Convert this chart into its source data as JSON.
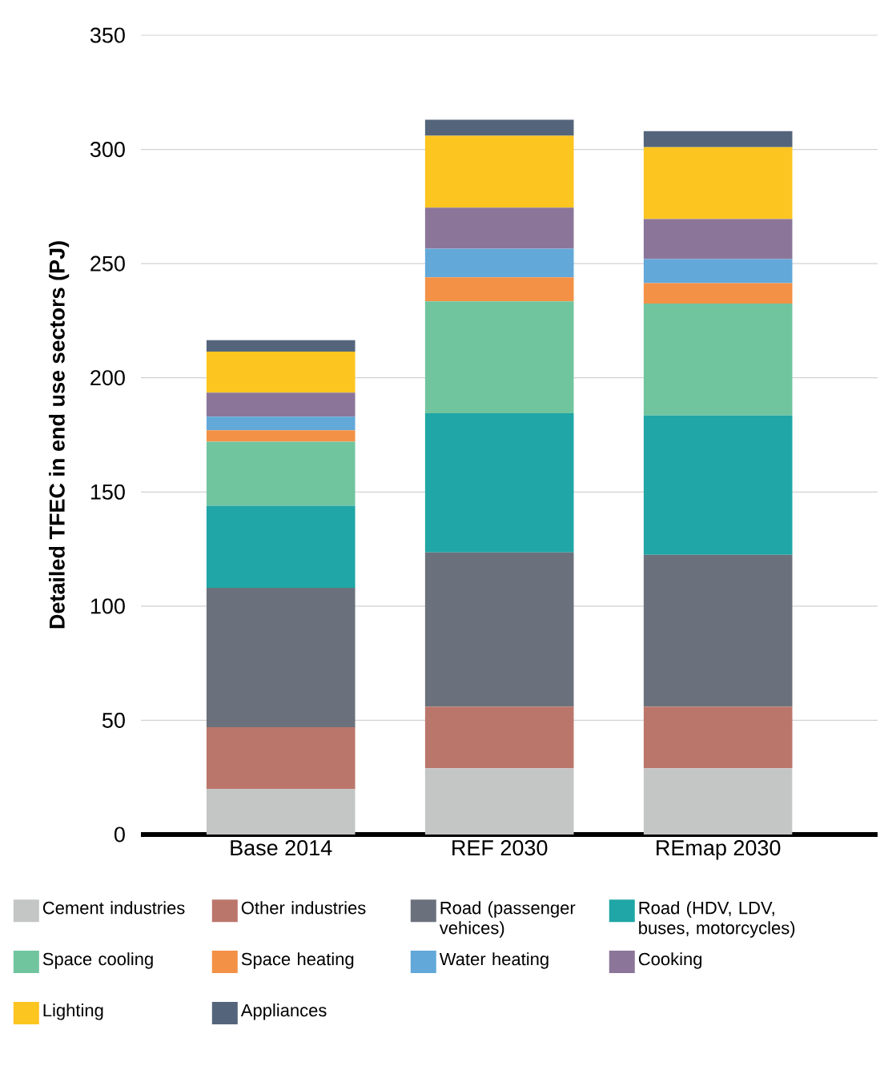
{
  "chart_data": {
    "type": "bar",
    "stacked": true,
    "ylabel": "Detailed TFEC in end use sectors (PJ)",
    "categories": [
      "Base 2014",
      "REF 2030",
      "REmap 2030"
    ],
    "ylim": [
      0,
      350
    ],
    "yticks": [
      0,
      50,
      100,
      150,
      200,
      250,
      300,
      350
    ],
    "grid": "y",
    "legend": "bottom",
    "series": [
      {
        "name": "Cement industries",
        "color": "#c4c6c5",
        "values": [
          20,
          29,
          29
        ]
      },
      {
        "name": "Other industries",
        "color": "#bb766b",
        "values": [
          27,
          27,
          27
        ]
      },
      {
        "name": "Road (passenger vehices)",
        "color": "#6b717c",
        "values": [
          61,
          67.5,
          66.5
        ]
      },
      {
        "name": "Road (HDV, LDV, buses, motorcycles)",
        "color": "#20a6a6",
        "values": [
          36,
          61,
          61
        ]
      },
      {
        "name": "Space cooling",
        "color": "#70c59f",
        "values": [
          28,
          49,
          49
        ]
      },
      {
        "name": "Space heating",
        "color": "#f39146",
        "values": [
          5,
          10.5,
          9
        ]
      },
      {
        "name": "Water heating",
        "color": "#62a8d9",
        "values": [
          6,
          12.5,
          10.5
        ]
      },
      {
        "name": "Cooking",
        "color": "#8b7699",
        "values": [
          10.5,
          18,
          17.5
        ]
      },
      {
        "name": "Lighting",
        "color": "#fcc520",
        "values": [
          18,
          31.5,
          31.5
        ]
      },
      {
        "name": "Appliances",
        "color": "#54657b",
        "values": [
          5,
          7,
          7
        ]
      }
    ]
  }
}
